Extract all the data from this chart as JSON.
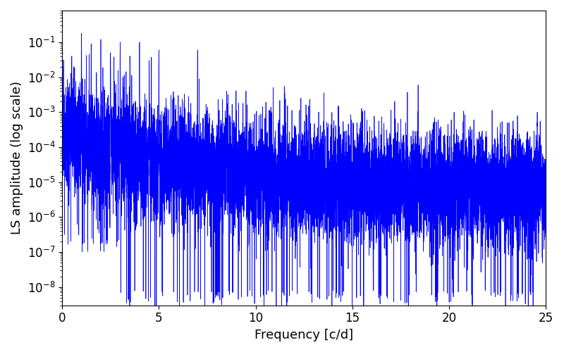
{
  "title": "",
  "xlabel": "Frequency [c/d]",
  "ylabel": "LS amplitude (log scale)",
  "line_color": "#0000ff",
  "line_width": 0.5,
  "xlim": [
    0,
    25
  ],
  "ylim": [
    3e-09,
    0.8
  ],
  "xmin": 0,
  "xmax": 25,
  "num_points": 10000,
  "seed": 12345,
  "background_color": "#ffffff",
  "figsize": [
    8.0,
    5.0
  ],
  "dpi": 100,
  "tick_labelsize": 12,
  "axis_labelsize": 13
}
